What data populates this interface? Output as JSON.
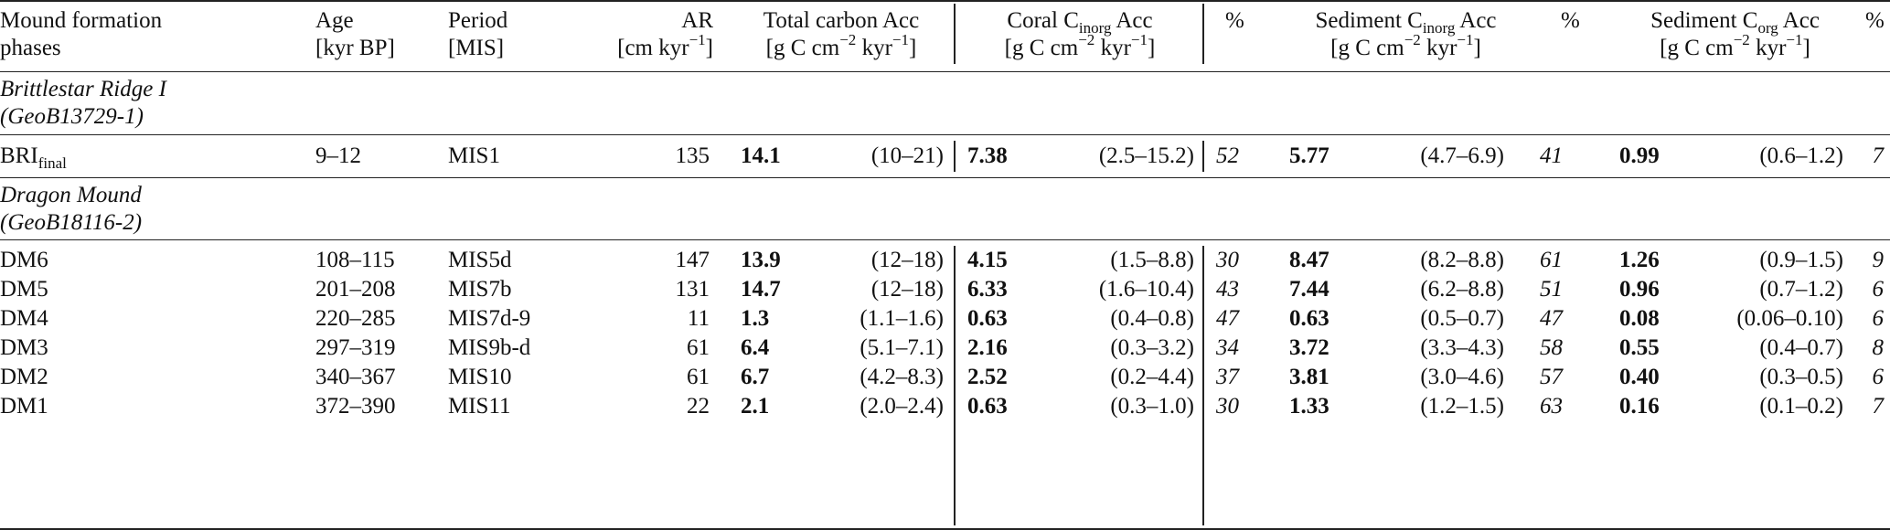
{
  "header": {
    "phase_l1": "Mound formation",
    "phase_l2": "phases",
    "age_l1": "Age",
    "age_l2": "[kyr BP]",
    "period_l1": "Period",
    "period_l2": "[MIS]",
    "ar_l1": "AR",
    "ar_l2_pre": "[cm kyr",
    "ar_l2_sup": "−1",
    "ar_l2_post": "]",
    "total_l1": "Total carbon Acc",
    "coral_l1_pre": "Coral C",
    "coral_l1_sub": "inorg",
    "coral_l1_post": " Acc",
    "sedinorg_l1_pre": "Sediment C",
    "sedinorg_l1_sub": "inorg",
    "sedinorg_l1_post": " Acc",
    "sedorg_l1_pre": "Sediment C",
    "sedorg_l1_sub": "org",
    "sedorg_l1_post": " Acc",
    "unit_pre": "[g C cm",
    "unit_sup1": "−2",
    "unit_mid": " kyr",
    "unit_sup2": "−1",
    "unit_post": "]",
    "pct": "%"
  },
  "groups": [
    {
      "name_l1": "Brittlestar Ridge I",
      "name_l2": "(GeoB13729-1)",
      "rows": [
        {
          "phase": "BRI",
          "phase_sub": "final",
          "age": "9–12",
          "period": "MIS1",
          "ar": "135",
          "total": "14.1",
          "total_range": "(10–21)",
          "coral": "7.38",
          "coral_range": "(2.5–15.2)",
          "coral_pct": "52",
          "sedinorg": "5.77",
          "sedinorg_range": "(4.7–6.9)",
          "sedinorg_pct": "41",
          "sedorg": "0.99",
          "sedorg_range": "(0.6–1.2)",
          "sedorg_pct": "7"
        }
      ]
    },
    {
      "name_l1": "Dragon Mound",
      "name_l2": "(GeoB18116-2)",
      "rows": [
        {
          "phase": "DM6",
          "phase_sub": "",
          "age": "108–115",
          "period": "MIS5d",
          "ar": "147",
          "total": "13.9",
          "total_range": "(12–18)",
          "coral": "4.15",
          "coral_range": "(1.5–8.8)",
          "coral_pct": "30",
          "sedinorg": "8.47",
          "sedinorg_range": "(8.2–8.8)",
          "sedinorg_pct": "61",
          "sedorg": "1.26",
          "sedorg_range": "(0.9–1.5)",
          "sedorg_pct": "9"
        },
        {
          "phase": "DM5",
          "phase_sub": "",
          "age": "201–208",
          "period": "MIS7b",
          "ar": "131",
          "total": "14.7",
          "total_range": "(12–18)",
          "coral": "6.33",
          "coral_range": "(1.6–10.4)",
          "coral_pct": "43",
          "sedinorg": "7.44",
          "sedinorg_range": "(6.2–8.8)",
          "sedinorg_pct": "51",
          "sedorg": "0.96",
          "sedorg_range": "(0.7–1.2)",
          "sedorg_pct": "6"
        },
        {
          "phase": "DM4",
          "phase_sub": "",
          "age": "220–285",
          "period": "MIS7d-9",
          "ar": "11",
          "total": "1.3",
          "total_range": "(1.1–1.6)",
          "coral": "0.63",
          "coral_range": "(0.4–0.8)",
          "coral_pct": "47",
          "sedinorg": "0.63",
          "sedinorg_range": "(0.5–0.7)",
          "sedinorg_pct": "47",
          "sedorg": "0.08",
          "sedorg_range": "(0.06–0.10)",
          "sedorg_pct": "6"
        },
        {
          "phase": "DM3",
          "phase_sub": "",
          "age": "297–319",
          "period": "MIS9b-d",
          "ar": "61",
          "total": "6.4",
          "total_range": "(5.1–7.1)",
          "coral": "2.16",
          "coral_range": "(0.3–3.2)",
          "coral_pct": "34",
          "sedinorg": "3.72",
          "sedinorg_range": "(3.3–4.3)",
          "sedinorg_pct": "58",
          "sedorg": "0.55",
          "sedorg_range": "(0.4–0.7)",
          "sedorg_pct": "8"
        },
        {
          "phase": "DM2",
          "phase_sub": "",
          "age": "340–367",
          "period": "MIS10",
          "ar": "61",
          "total": "6.7",
          "total_range": "(4.2–8.3)",
          "coral": "2.52",
          "coral_range": "(0.2–4.4)",
          "coral_pct": "37",
          "sedinorg": "3.81",
          "sedinorg_range": "(3.0–4.6)",
          "sedinorg_pct": "57",
          "sedorg": "0.40",
          "sedorg_range": "(0.3–0.5)",
          "sedorg_pct": "6"
        },
        {
          "phase": "DM1",
          "phase_sub": "",
          "age": "372–390",
          "period": "MIS11",
          "ar": "22",
          "total": "2.1",
          "total_range": "(2.0–2.4)",
          "coral": "0.63",
          "coral_range": "(0.3–1.0)",
          "coral_pct": "30",
          "sedinorg": "1.33",
          "sedinorg_range": "(1.2–1.5)",
          "sedinorg_pct": "63",
          "sedorg": "0.16",
          "sedorg_range": "(0.1–0.2)",
          "sedorg_pct": "7"
        }
      ]
    }
  ]
}
